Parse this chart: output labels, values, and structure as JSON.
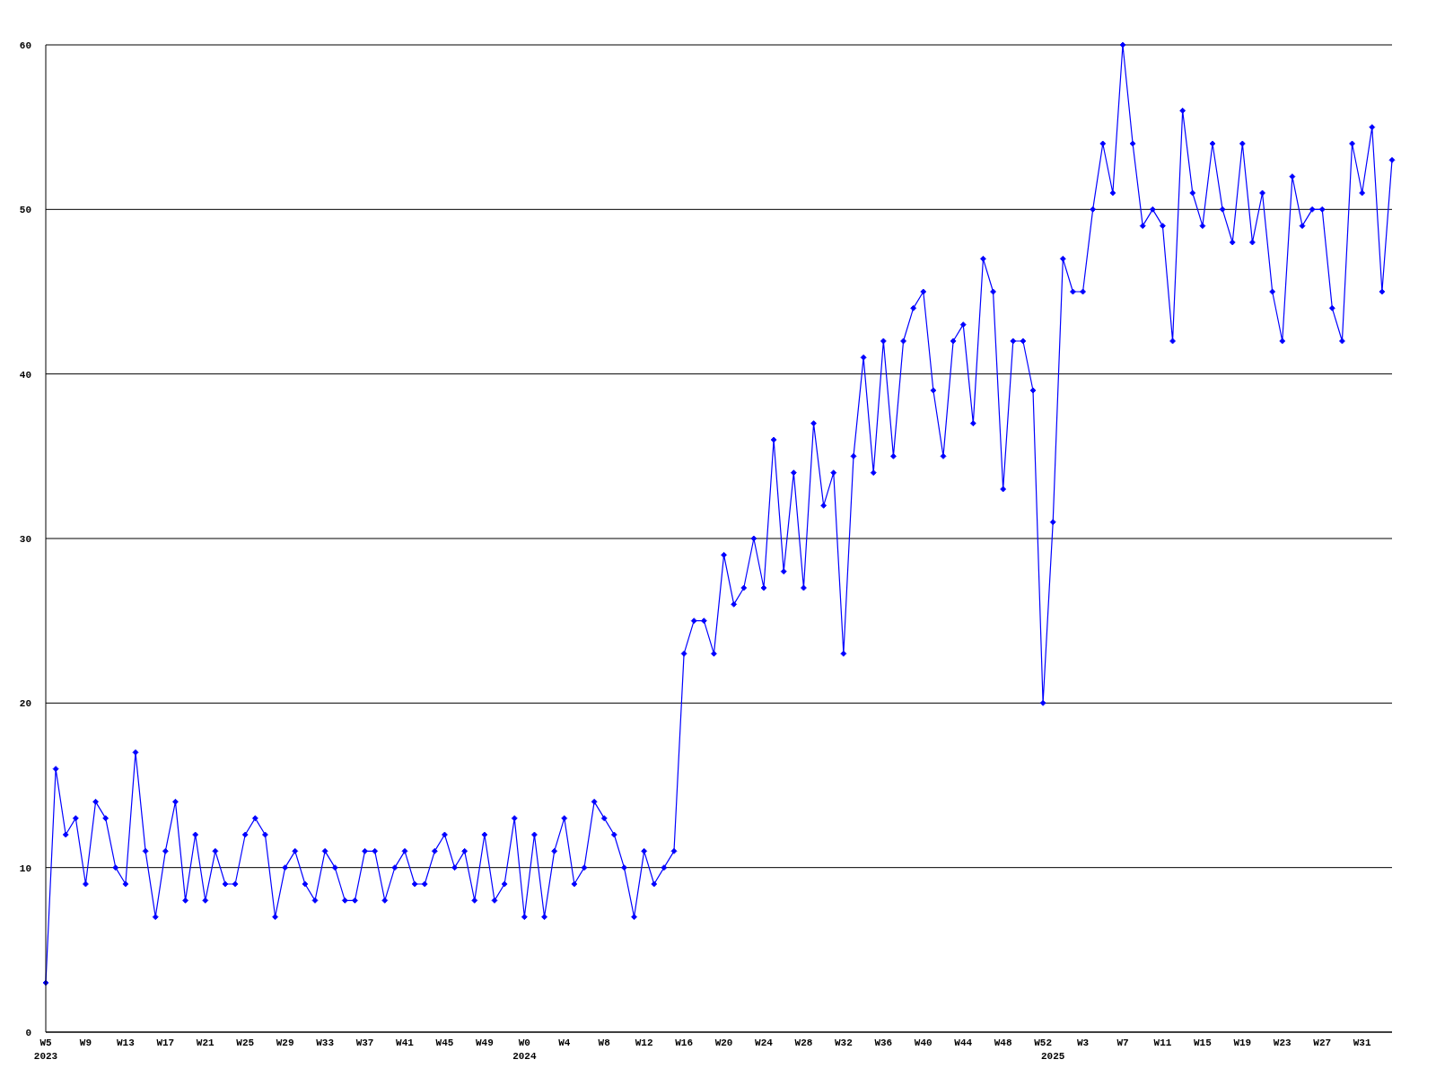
{
  "chart_data": {
    "type": "line",
    "categories": [
      "W5\n2023",
      null,
      null,
      null,
      "W9",
      null,
      null,
      null,
      "W13",
      null,
      null,
      null,
      "W17",
      null,
      null,
      null,
      "W21",
      null,
      null,
      null,
      "W25",
      null,
      null,
      null,
      "W29",
      null,
      null,
      null,
      "W33",
      null,
      null,
      null,
      "W37",
      null,
      null,
      null,
      "W41",
      null,
      null,
      null,
      "W45",
      null,
      null,
      null,
      "W49",
      null,
      null,
      null,
      "W0\n2024",
      null,
      null,
      null,
      "W4",
      null,
      null,
      null,
      "W8",
      null,
      null,
      null,
      "W12",
      null,
      null,
      null,
      "W16",
      null,
      null,
      null,
      "W20",
      null,
      null,
      null,
      "W24",
      null,
      null,
      null,
      "W28",
      null,
      null,
      null,
      "W32",
      null,
      null,
      null,
      "W36",
      null,
      null,
      null,
      "W40",
      null,
      null,
      null,
      "W44",
      null,
      null,
      null,
      "W48",
      null,
      null,
      null,
      "W52",
      "\n2025",
      null,
      null,
      "W3",
      null,
      null,
      null,
      "W7",
      null,
      null,
      null,
      "W11",
      null,
      null,
      null,
      "W15",
      null,
      null,
      null,
      "W19",
      null,
      null,
      null,
      "W23",
      null,
      null,
      null,
      "W27",
      null,
      null,
      null,
      "W31",
      null,
      null,
      null
    ],
    "series": [
      {
        "color": "#0000ff",
        "values": [
          3,
          16,
          12,
          13,
          9,
          14,
          13,
          10,
          9,
          17,
          11,
          7,
          11,
          14,
          8,
          12,
          8,
          11,
          9,
          9,
          12,
          13,
          12,
          7,
          10,
          11,
          9,
          8,
          11,
          10,
          8,
          8,
          11,
          11,
          8,
          10,
          11,
          9,
          9,
          11,
          12,
          10,
          11,
          8,
          12,
          8,
          9,
          13,
          7,
          12,
          7,
          11,
          13,
          9,
          10,
          14,
          13,
          12,
          10,
          7,
          11,
          9,
          10,
          11,
          23,
          25,
          25,
          23,
          29,
          26,
          27,
          30,
          27,
          36,
          28,
          34,
          27,
          37,
          32,
          34,
          23,
          35,
          41,
          34,
          42,
          35,
          42,
          44,
          45,
          39,
          35,
          42,
          43,
          37,
          47,
          45,
          33,
          42,
          42,
          39,
          20,
          31,
          47,
          45,
          45,
          50,
          54,
          51,
          60,
          54,
          49,
          50,
          49,
          42,
          56,
          51,
          49,
          54,
          50,
          48,
          54,
          48,
          51,
          45,
          42,
          52,
          49,
          50,
          50,
          44,
          42,
          54,
          51,
          55,
          45,
          53
        ]
      }
    ],
    "ylim": [
      0,
      60
    ],
    "yticks": [
      0,
      10,
      20,
      30,
      40,
      50,
      60
    ],
    "grid": "y",
    "marker": "diamond",
    "line_style": "solid"
  }
}
